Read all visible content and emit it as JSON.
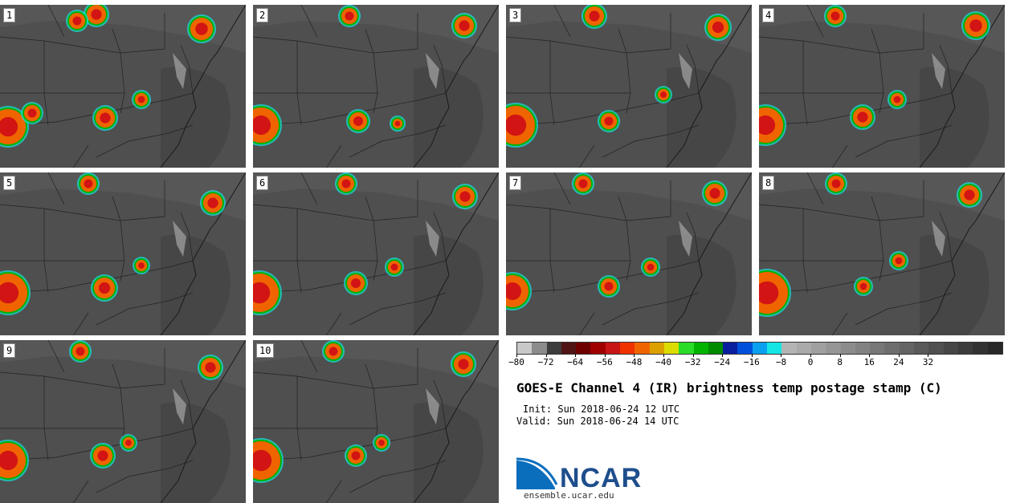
{
  "panels": [
    {
      "label": "1"
    },
    {
      "label": "2"
    },
    {
      "label": "3"
    },
    {
      "label": "4"
    },
    {
      "label": "5"
    },
    {
      "label": "6"
    },
    {
      "label": "7"
    },
    {
      "label": "8"
    },
    {
      "label": "9"
    },
    {
      "label": "10"
    }
  ],
  "colorbar": {
    "colors": [
      "#c8c8c8",
      "#8c8c8c",
      "#3c3c3c",
      "#501414",
      "#6e0000",
      "#a00000",
      "#c81414",
      "#f03200",
      "#f06400",
      "#dca000",
      "#dcdc00",
      "#28dc28",
      "#00b400",
      "#008c00",
      "#0a1ea0",
      "#0050dc",
      "#0aa0f0",
      "#14e6e6",
      "#b4b4b4",
      "#aaaaaa",
      "#a0a0a0",
      "#969696",
      "#8c8c8c",
      "#828282",
      "#787878",
      "#6e6e6e",
      "#646464",
      "#5a5a5a",
      "#505050",
      "#464646",
      "#3c3c3c",
      "#323232",
      "#282828"
    ],
    "ticks": [
      "−80",
      "−72",
      "−64",
      "−56",
      "−48",
      "−40",
      "−32",
      "−24",
      "−16",
      "−8",
      "0",
      "8",
      "16",
      "24",
      "32"
    ]
  },
  "title": "GOES-E Channel 4 (IR) brightness temp postage stamp (C)",
  "init": "Init: Sun 2018-06-24 12 UTC",
  "valid": "Valid: Sun 2018-06-24 14 UTC",
  "logo": {
    "text": "NCAR",
    "url": "ensemble.ucar.edu"
  }
}
